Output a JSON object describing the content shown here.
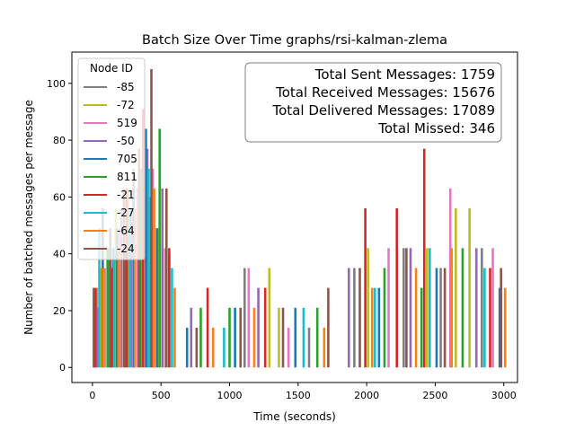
{
  "chart_data": {
    "type": "bar",
    "title": "Batch Size Over Time graphs/rsi-kalman-zlema",
    "xlabel": "Time (seconds)",
    "ylabel": "Number of batched messages per message",
    "xlim": [
      -150,
      3100
    ],
    "ylim": [
      -5.3,
      111
    ],
    "x_ticks": [
      0,
      500,
      1000,
      1500,
      2000,
      2500,
      3000
    ],
    "y_ticks": [
      0,
      20,
      40,
      60,
      80,
      100
    ],
    "grid": false,
    "legend": {
      "title": "Node ID",
      "placement": "upper-left",
      "entries": [
        {
          "name": "-85",
          "color": "#7f7f7f"
        },
        {
          "name": "-72",
          "color": "#bcbd22"
        },
        {
          "name": "519",
          "color": "#e377c2"
        },
        {
          "name": "-50",
          "color": "#9467bd"
        },
        {
          "name": "705",
          "color": "#1f77b4"
        },
        {
          "name": "811",
          "color": "#2ca02c"
        },
        {
          "name": "-21",
          "color": "#d62728"
        },
        {
          "name": "-27",
          "color": "#17becf"
        },
        {
          "name": "-64",
          "color": "#ff7f0e"
        },
        {
          "name": "-24",
          "color": "#8c564b"
        }
      ]
    },
    "annotation": [
      "Total Sent Messages: 1759",
      "Total Received Messages: 15676",
      "Total Delivered Messages: 17089",
      "Total Missed: 346"
    ],
    "series": [
      {
        "name": "-85",
        "color": "#7f7f7f",
        "x": [
          30,
          120,
          210,
          300,
          420,
          560,
          1110,
          1580,
          1910,
          2270,
          2540,
          2840
        ],
        "y": [
          28,
          42,
          56,
          70,
          60,
          40,
          35,
          14,
          35,
          42,
          35,
          42
        ]
      },
      {
        "name": "-72",
        "color": "#bcbd22",
        "x": [
          60,
          170,
          260,
          360,
          480,
          1290,
          1360,
          2010,
          2440,
          2650,
          2750
        ],
        "y": [
          35,
          56,
          63,
          70,
          49,
          35,
          21,
          42,
          42,
          56,
          56
        ]
      },
      {
        "name": "519",
        "color": "#e377c2",
        "x": [
          90,
          200,
          330,
          440,
          530,
          1140,
          1430,
          2160,
          2610,
          2920
        ],
        "y": [
          35,
          49,
          63,
          70,
          42,
          35,
          14,
          42,
          63,
          42
        ]
      },
      {
        "name": "-50",
        "color": "#9467bd",
        "x": [
          40,
          150,
          280,
          400,
          510,
          720,
          1210,
          1870,
          2320,
          2800
        ],
        "y": [
          21,
          42,
          56,
          77,
          63,
          21,
          28,
          35,
          42,
          42
        ]
      },
      {
        "name": "705",
        "color": "#1f77b4",
        "x": [
          75,
          180,
          300,
          390,
          470,
          690,
          1040,
          1480,
          2090,
          2510,
          2970
        ],
        "y": [
          56,
          49,
          63,
          84,
          49,
          14,
          21,
          21,
          28,
          35,
          28
        ]
      },
      {
        "name": "811",
        "color": "#2ca02c",
        "x": [
          110,
          240,
          350,
          490,
          790,
          1000,
          1640,
          2130,
          2400,
          2700
        ],
        "y": [
          42,
          42,
          70,
          84,
          21,
          21,
          21,
          35,
          28,
          42
        ]
      },
      {
        "name": "-21",
        "color": "#d62728",
        "x": [
          20,
          140,
          250,
          370,
          560,
          840,
          1260,
          1990,
          2220,
          2420,
          2900
        ],
        "y": [
          28,
          35,
          63,
          91,
          42,
          28,
          28,
          56,
          56,
          77,
          35
        ]
      },
      {
        "name": "-27",
        "color": "#17becf",
        "x": [
          50,
          160,
          270,
          410,
          580,
          960,
          1540,
          2060,
          2460,
          2860
        ],
        "y": [
          49,
          42,
          56,
          70,
          35,
          14,
          21,
          28,
          42,
          35
        ]
      },
      {
        "name": "-64",
        "color": "#ff7f0e",
        "x": [
          80,
          190,
          310,
          450,
          600,
          880,
          1180,
          1690,
          2040,
          2360,
          2620,
          3010
        ],
        "y": [
          35,
          42,
          56,
          63,
          28,
          14,
          21,
          14,
          28,
          35,
          42,
          28
        ]
      },
      {
        "name": "-24",
        "color": "#8c564b",
        "x": [
          10,
          130,
          230,
          340,
          430,
          540,
          760,
          1080,
          1390,
          1720,
          1950,
          2290,
          2570,
          2980
        ],
        "y": [
          28,
          49,
          63,
          77,
          105,
          63,
          14,
          21,
          21,
          28,
          35,
          42,
          35,
          35
        ]
      }
    ]
  }
}
